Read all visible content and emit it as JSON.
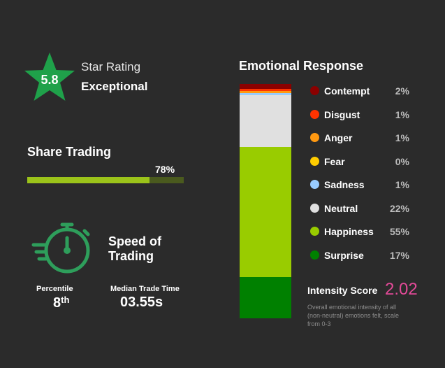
{
  "rating": {
    "value": "5.8",
    "label": "Star Rating",
    "word": "Exceptional"
  },
  "share": {
    "title": "Share Trading",
    "percent_text": "78%",
    "fraction": 0.78,
    "fill_color": "#9bc31a",
    "track_color": "#4a5a1e"
  },
  "speed": {
    "title": "Speed of Trading",
    "percentile_label": "Percentile",
    "percentile_value": "8",
    "percentile_suffix": "th",
    "median_label": "Median Trade Time",
    "median_value": "03.55s",
    "icon": "stopwatch-icon",
    "icon_color": "#2e9e5b"
  },
  "emotions": {
    "title": "Emotional Response",
    "items": [
      {
        "name": "Contempt",
        "value_text": "2%",
        "value": 2,
        "color": "#8b0000"
      },
      {
        "name": "Disgust",
        "value_text": "1%",
        "value": 1,
        "color": "#ff3300"
      },
      {
        "name": "Anger",
        "value_text": "1%",
        "value": 1,
        "color": "#ff9911"
      },
      {
        "name": "Fear",
        "value_text": "0%",
        "value": 0,
        "color": "#ffcc00"
      },
      {
        "name": "Sadness",
        "value_text": "1%",
        "value": 1,
        "color": "#99ccff"
      },
      {
        "name": "Neutral",
        "value_text": "22%",
        "value": 22,
        "color": "#e0e0e0"
      },
      {
        "name": "Happiness",
        "value_text": "55%",
        "value": 55,
        "color": "#99cc00"
      },
      {
        "name": "Surprise",
        "value_text": "17%",
        "value": 17,
        "color": "#008000"
      }
    ]
  },
  "intensity": {
    "label": "Intensity Score",
    "value": "2.02",
    "description": "Overall emotional intensity of all (non-neutral) emotions felt, scale from 0-3"
  }
}
